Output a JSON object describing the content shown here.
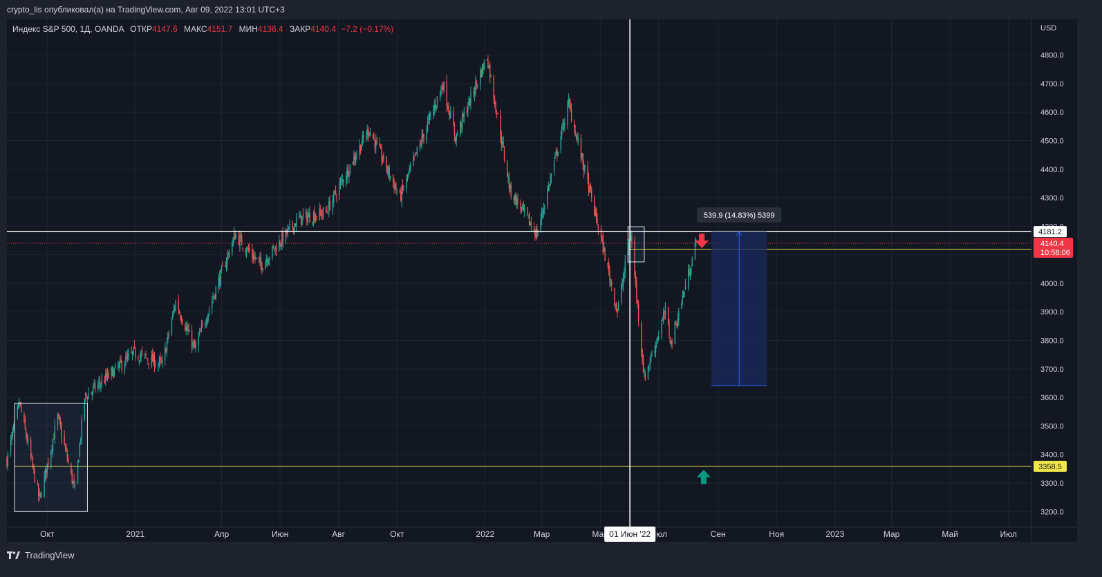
{
  "header": {
    "published": "crypto_lis опубликовал(а) на TradingView.com, Авг 09, 2022 13:01 UTC+3"
  },
  "legend": {
    "symbol": "Индекс S&P 500, 1Д, OANDA",
    "open_label": "ОТКР",
    "open": "4147.6",
    "high_label": "МАКС",
    "high": "4151.7",
    "low_label": "МИН",
    "low": "4136.4",
    "close_label": "ЗАКР",
    "close": "4140.4",
    "change": "−7.2 (−0.17%)"
  },
  "footer": {
    "brand": "TradingView",
    "logo": "tradingview-logo-icon"
  },
  "colors": {
    "background": "#131722",
    "up": "#26a69a",
    "down": "#ef5350",
    "grid": "#1f2430",
    "crosshair": "#ffffff",
    "level_line": "#f0e64a",
    "price_line": "#f23645",
    "measure_fill": "#1a2a5c",
    "measure_line": "#2962ff"
  },
  "chart_data": {
    "type": "candlestick",
    "currency": "USD",
    "y_ticks": [
      3200,
      3300,
      3400,
      3500,
      3600,
      3700,
      3800,
      3900,
      4000,
      4100,
      4200,
      4300,
      4400,
      4500,
      4600,
      4700,
      4800
    ],
    "y_tick_labels": [
      "3200.0",
      "3300.0",
      "3400.0",
      "3500.0",
      "3600.0",
      "3700.0",
      "3800.0",
      "3900.0",
      "4000.0",
      "4100.0",
      "4200.0",
      "4300.0",
      "4400.0",
      "4500.0",
      "4600.0",
      "4700.0",
      "4800.0"
    ],
    "x_ticks": [
      {
        "label": "Окт",
        "date": "2020-10-01"
      },
      {
        "label": "2021",
        "date": "2021-01-01"
      },
      {
        "label": "Апр",
        "date": "2021-04-01"
      },
      {
        "label": "Июн",
        "date": "2021-06-01"
      },
      {
        "label": "Авг",
        "date": "2021-08-01"
      },
      {
        "label": "Окт",
        "date": "2021-10-01"
      },
      {
        "label": "2022",
        "date": "2022-01-01"
      },
      {
        "label": "Мар",
        "date": "2022-03-01"
      },
      {
        "label": "Май",
        "date": "2022-05-01"
      },
      {
        "label": "Июл",
        "date": "2022-07-01"
      },
      {
        "label": "Сен",
        "date": "2022-09-01"
      },
      {
        "label": "Ноя",
        "date": "2022-11-01"
      },
      {
        "label": "2023",
        "date": "2023-01-01"
      },
      {
        "label": "Мар",
        "date": "2023-03-01"
      },
      {
        "label": "Май",
        "date": "2023-05-01"
      },
      {
        "label": "Июл",
        "date": "2023-07-01"
      }
    ],
    "x_range": [
      "2020-08-20",
      "2023-07-25"
    ],
    "y_range": [
      3145,
      4925
    ],
    "keypoints": [
      {
        "date": "2020-08-20",
        "price": 3380
      },
      {
        "date": "2020-09-02",
        "price": 3580
      },
      {
        "date": "2020-09-23",
        "price": 3240
      },
      {
        "date": "2020-10-12",
        "price": 3530
      },
      {
        "date": "2020-10-30",
        "price": 3270
      },
      {
        "date": "2020-11-09",
        "price": 3600
      },
      {
        "date": "2020-12-31",
        "price": 3756
      },
      {
        "date": "2021-01-29",
        "price": 3714
      },
      {
        "date": "2021-02-12",
        "price": 3935
      },
      {
        "date": "2021-03-04",
        "price": 3768
      },
      {
        "date": "2021-04-15",
        "price": 4170
      },
      {
        "date": "2021-05-12",
        "price": 4063
      },
      {
        "date": "2021-06-20",
        "price": 4225
      },
      {
        "date": "2021-07-19",
        "price": 4250
      },
      {
        "date": "2021-08-31",
        "price": 4530
      },
      {
        "date": "2021-09-02",
        "price": 4540
      },
      {
        "date": "2021-10-04",
        "price": 4300
      },
      {
        "date": "2021-11-18",
        "price": 4700
      },
      {
        "date": "2021-12-01",
        "price": 4510
      },
      {
        "date": "2022-01-03",
        "price": 4796
      },
      {
        "date": "2022-01-27",
        "price": 4326
      },
      {
        "date": "2022-02-24",
        "price": 4170
      },
      {
        "date": "2022-03-29",
        "price": 4630
      },
      {
        "date": "2022-05-02",
        "price": 4155
      },
      {
        "date": "2022-05-19",
        "price": 3900
      },
      {
        "date": "2022-06-02",
        "price": 4176
      },
      {
        "date": "2022-06-16",
        "price": 3666
      },
      {
        "date": "2022-07-08",
        "price": 3899
      },
      {
        "date": "2022-07-14",
        "price": 3790
      },
      {
        "date": "2022-08-09",
        "price": 4140
      }
    ],
    "levels": [
      {
        "name": "white-level",
        "price": 4181.2,
        "label": "4181.2",
        "color": "#ffffff"
      },
      {
        "name": "yellow-upper",
        "price": 4118.5,
        "label": "4118.5",
        "color": "#f0e64a",
        "start_date": "2022-06-01"
      },
      {
        "name": "yellow-lower",
        "price": 3358.5,
        "label": "3358.5",
        "color": "#f0e64a",
        "start_date": "2020-08-28"
      }
    ],
    "last_price": {
      "price": 4140.4,
      "label": "4140.4",
      "countdown": "10:58:06"
    },
    "crosshair": {
      "date": "2022-06-01",
      "label": "01 Июн '22"
    },
    "rect_2020": {
      "x0": "2020-08-28",
      "x1": "2020-11-12",
      "y0": 3200,
      "y1": 3580
    },
    "rect_2022": {
      "x0": "2022-05-30",
      "x1": "2022-06-16",
      "y0": 4075,
      "y1": 4198
    },
    "measure": {
      "x0": "2022-08-25",
      "x1": "2022-10-22",
      "y0": 3641.3,
      "y1": 4181.2,
      "label": "539.9 (14.83%) 5399"
    },
    "arrows": [
      {
        "name": "sell-arrow",
        "direction": "down",
        "date": "2022-08-15",
        "price": 4140,
        "color": "#f23645"
      },
      {
        "name": "buy-arrow",
        "direction": "up",
        "date": "2022-08-17",
        "price": 3330,
        "color": "#089981"
      }
    ]
  }
}
